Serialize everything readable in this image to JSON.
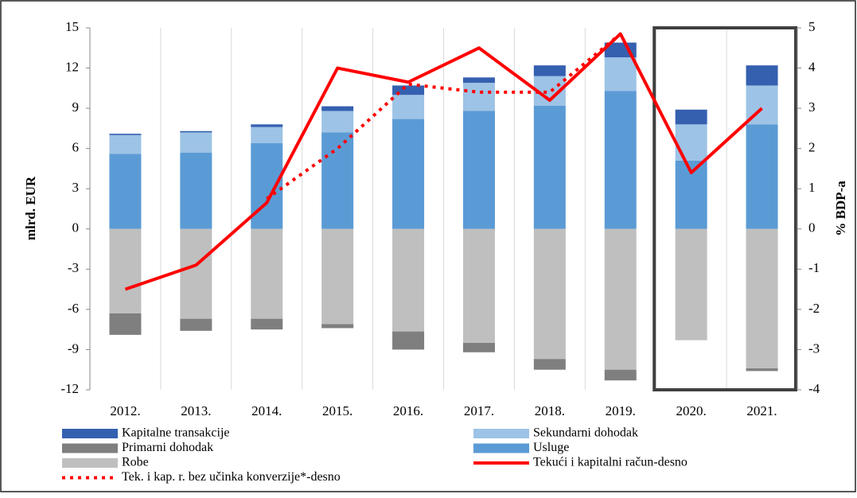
{
  "chart_data": {
    "type": "bar",
    "categories": [
      "2012.",
      "2013.",
      "2014.",
      "2015.",
      "2016.",
      "2017.",
      "2018.",
      "2019.",
      "2020.",
      "2021."
    ],
    "series": [
      {
        "name": "Usluge",
        "color": "#5b9bd5",
        "values": [
          5.6,
          5.7,
          6.4,
          7.2,
          8.2,
          8.8,
          9.2,
          10.3,
          5.1,
          7.8
        ]
      },
      {
        "name": "Sekundarni dohodak",
        "color": "#9dc3e6",
        "values": [
          1.4,
          1.5,
          1.2,
          1.6,
          1.8,
          2.1,
          2.2,
          2.5,
          2.7,
          2.9
        ]
      },
      {
        "name": "Kapitalne transakcije",
        "color": "#3560b0",
        "values": [
          0.1,
          0.1,
          0.2,
          0.35,
          0.7,
          0.4,
          0.8,
          1.1,
          1.1,
          1.5
        ]
      },
      {
        "name": "Robe",
        "color": "#bfbfbf",
        "values": [
          -6.3,
          -6.7,
          -6.7,
          -7.1,
          -7.65,
          -8.5,
          -9.7,
          -10.5,
          -8.3,
          -10.4
        ]
      },
      {
        "name": "Primarni dohodak",
        "color": "#7f7f7f",
        "values": [
          -1.6,
          -0.9,
          -0.8,
          -0.3,
          -1.35,
          -0.7,
          -0.8,
          -0.8,
          0,
          -0.2
        ]
      },
      {
        "name": "Tekući i kapitalni račun-desno",
        "color": "#ff0000",
        "type": "line",
        "axis": "y2",
        "linestyle": "solid",
        "values": [
          -1.5,
          -0.9,
          0.65,
          4.0,
          3.65,
          4.5,
          3.2,
          4.85,
          1.4,
          3.0
        ]
      },
      {
        "name": "Tek. i kap. r. bez učinka konverzije*-desno",
        "color": "#ff0000",
        "type": "line",
        "axis": "y2",
        "linestyle": "dotted",
        "values": [
          null,
          null,
          0.75,
          2.0,
          3.6,
          3.4,
          3.4,
          4.85,
          null,
          null
        ]
      }
    ],
    "ylabel": "mlrd. EUR",
    "y2label": "% BDP-a",
    "ylim": [
      -12,
      15
    ],
    "yticks": [
      15,
      12,
      9,
      6,
      3,
      0,
      -3,
      -6,
      -9,
      -12
    ],
    "y2lim": [
      -4,
      5
    ],
    "y2ticks": [
      5,
      4,
      3,
      2,
      1,
      0,
      -1,
      -2,
      -3,
      -4
    ]
  }
}
